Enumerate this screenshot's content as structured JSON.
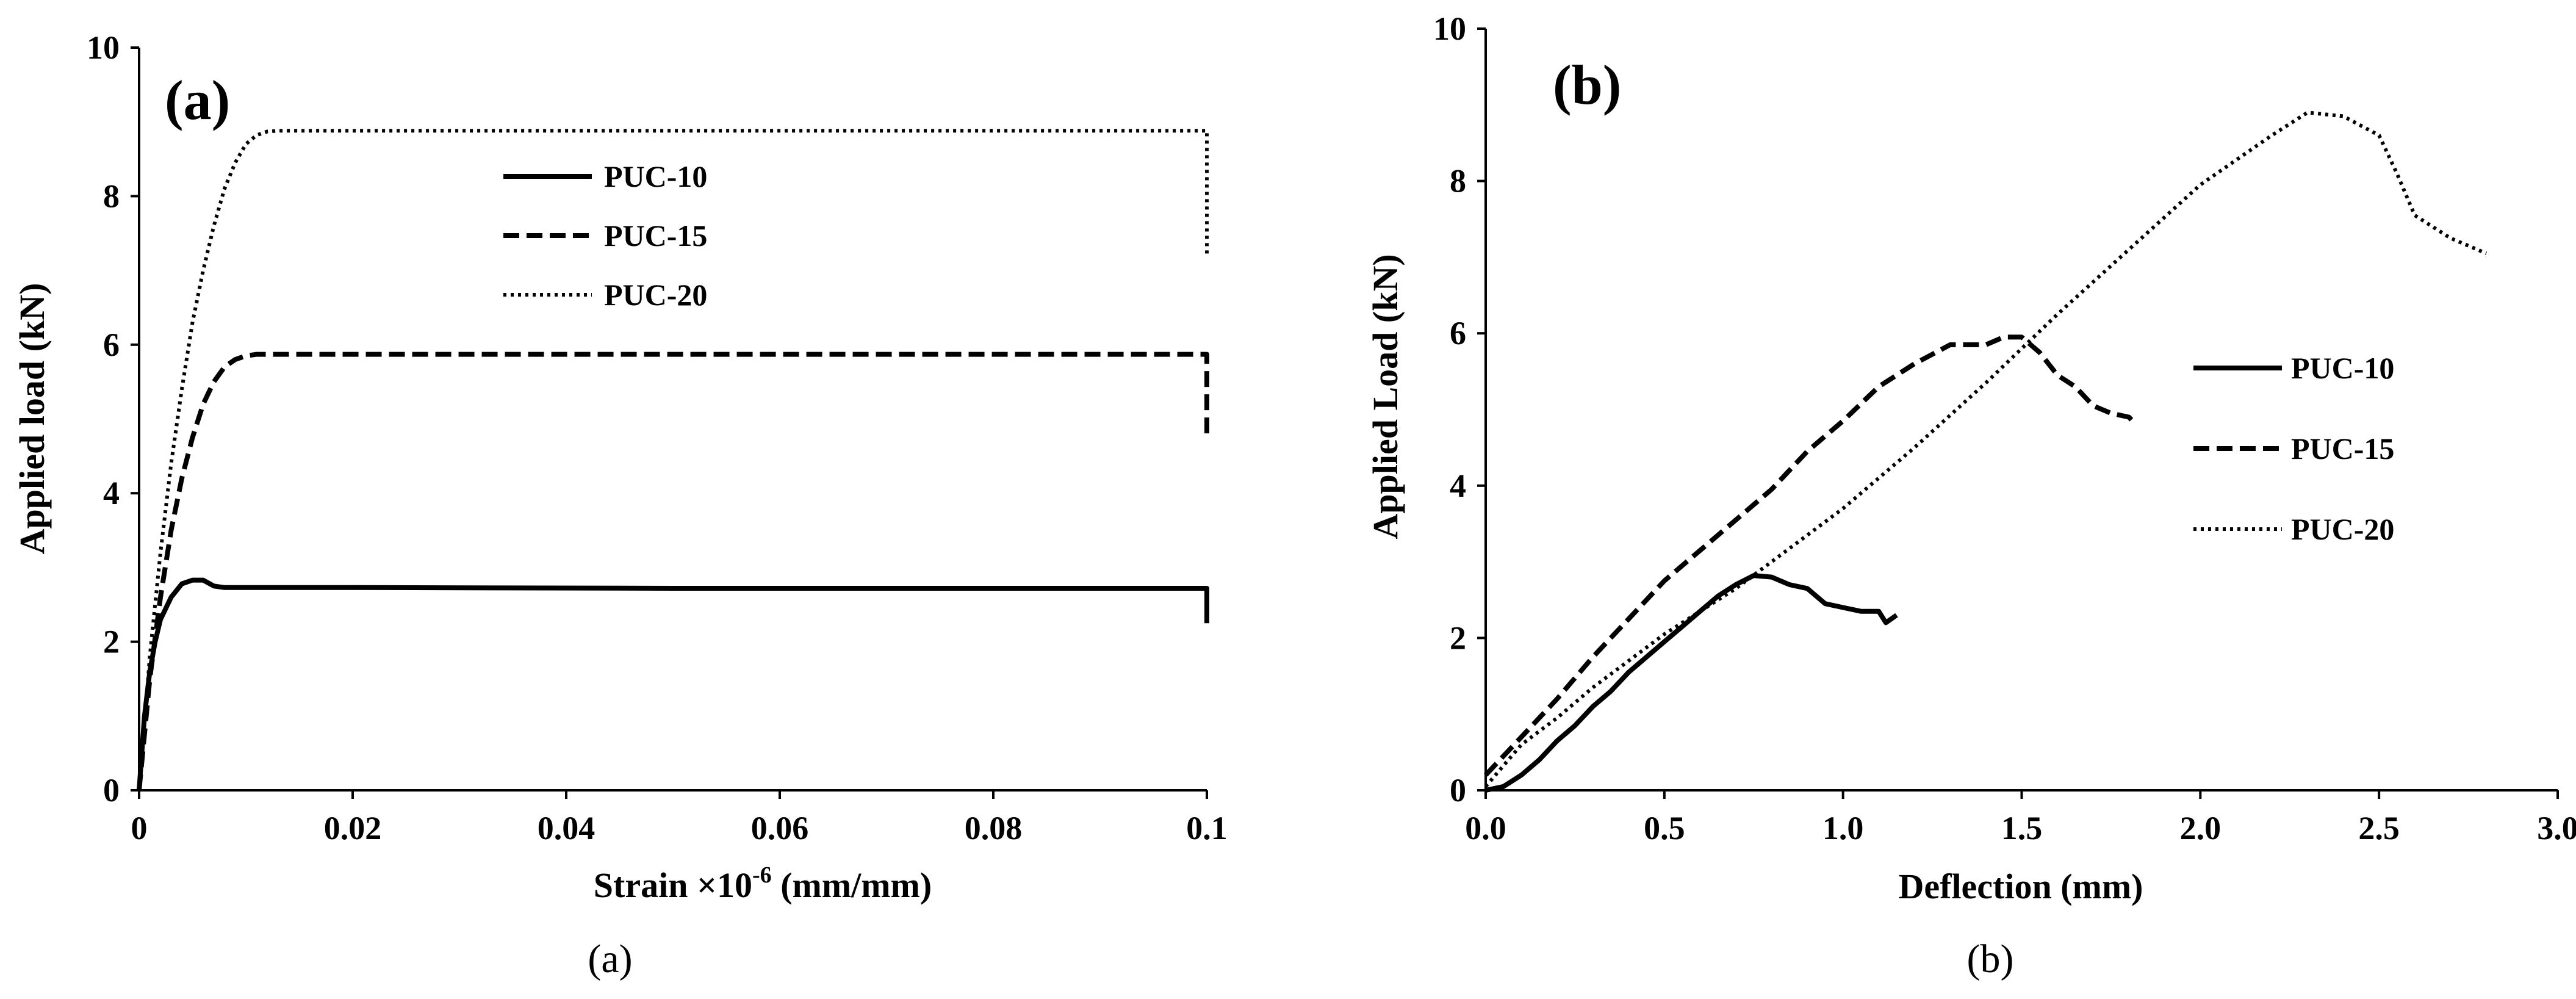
{
  "chart_data": [
    {
      "type": "line",
      "panel_label": "(a)",
      "caption": "(a)",
      "xlabel_main": "Strain ×10",
      "xlabel_exp": "-6",
      "xlabel_unit": " (mm/mm)",
      "ylabel": "Applied load (kN)",
      "xlim": [
        0,
        0.1
      ],
      "ylim": [
        0,
        10
      ],
      "xticks": [
        0,
        0.02,
        0.04,
        0.06,
        0.08,
        0.1
      ],
      "xtick_labels": [
        "0",
        "0.02",
        "0.04",
        "0.06",
        "0.08",
        "0.1"
      ],
      "yticks": [
        0,
        2,
        4,
        6,
        8,
        10
      ],
      "ytick_labels": [
        "0",
        "2",
        "4",
        "6",
        "8",
        "10"
      ],
      "legend_position": "top-center",
      "series": [
        {
          "name": "PUC-10",
          "style": "solid",
          "x": [
            0,
            0.0005,
            0.001,
            0.0015,
            0.002,
            0.003,
            0.004,
            0.005,
            0.006,
            0.007,
            0.008,
            0.02,
            0.05,
            0.08,
            0.1,
            0.1
          ],
          "y": [
            0,
            1.0,
            1.6,
            2.0,
            2.3,
            2.6,
            2.78,
            2.83,
            2.83,
            2.75,
            2.73,
            2.73,
            2.72,
            2.72,
            2.72,
            2.25
          ]
        },
        {
          "name": "PUC-15",
          "style": "dashed",
          "x": [
            0,
            0.001,
            0.002,
            0.003,
            0.004,
            0.005,
            0.006,
            0.007,
            0.008,
            0.009,
            0.01,
            0.011,
            0.03,
            0.07,
            0.1,
            0.1
          ],
          "y": [
            0,
            1.5,
            2.6,
            3.5,
            4.2,
            4.75,
            5.2,
            5.5,
            5.7,
            5.8,
            5.85,
            5.87,
            5.87,
            5.87,
            5.87,
            4.8
          ]
        },
        {
          "name": "PUC-20",
          "style": "dotted",
          "x": [
            0,
            0.001,
            0.002,
            0.003,
            0.004,
            0.005,
            0.006,
            0.007,
            0.008,
            0.009,
            0.01,
            0.011,
            0.012,
            0.013,
            0.05,
            0.1,
            0.1
          ],
          "y": [
            0,
            1.8,
            3.2,
            4.4,
            5.4,
            6.3,
            7.0,
            7.6,
            8.1,
            8.45,
            8.7,
            8.82,
            8.87,
            8.88,
            8.88,
            8.88,
            7.2
          ]
        }
      ]
    },
    {
      "type": "line",
      "panel_label": "(b)",
      "caption": "(b)",
      "xlabel": "Deflection (mm)",
      "ylabel": "Applied Load (kN)",
      "xlim": [
        0,
        3.0
      ],
      "ylim": [
        0,
        10
      ],
      "xticks": [
        0,
        0.5,
        1.0,
        1.5,
        2.0,
        2.5,
        3.0
      ],
      "xtick_labels": [
        "0.0",
        "0.5",
        "1.0",
        "1.5",
        "2.0",
        "2.5",
        "3.0"
      ],
      "yticks": [
        0,
        2,
        4,
        6,
        8,
        10
      ],
      "ytick_labels": [
        "0",
        "2",
        "4",
        "6",
        "8",
        "10"
      ],
      "legend_position": "right",
      "series": [
        {
          "name": "PUC-10",
          "style": "solid",
          "x": [
            0,
            0.05,
            0.1,
            0.15,
            0.2,
            0.25,
            0.3,
            0.35,
            0.4,
            0.45,
            0.5,
            0.55,
            0.6,
            0.65,
            0.7,
            0.75,
            0.8,
            0.85,
            0.9,
            0.95,
            1.0,
            1.05,
            1.1,
            1.12,
            1.15
          ],
          "y": [
            0,
            0.05,
            0.2,
            0.4,
            0.65,
            0.85,
            1.1,
            1.3,
            1.55,
            1.75,
            1.95,
            2.15,
            2.35,
            2.55,
            2.7,
            2.82,
            2.8,
            2.7,
            2.65,
            2.45,
            2.4,
            2.35,
            2.35,
            2.2,
            2.3
          ]
        },
        {
          "name": "PUC-15",
          "style": "dashed",
          "x": [
            0,
            0.05,
            0.1,
            0.2,
            0.3,
            0.4,
            0.5,
            0.6,
            0.7,
            0.8,
            0.9,
            1.0,
            1.1,
            1.2,
            1.3,
            1.4,
            1.45,
            1.5,
            1.55,
            1.6,
            1.65,
            1.7,
            1.75,
            1.8,
            1.82
          ],
          "y": [
            0.2,
            0.45,
            0.7,
            1.2,
            1.75,
            2.25,
            2.75,
            3.15,
            3.55,
            3.95,
            4.45,
            4.85,
            5.3,
            5.6,
            5.85,
            5.85,
            5.95,
            5.95,
            5.75,
            5.45,
            5.3,
            5.05,
            4.95,
            4.9,
            4.8
          ]
        },
        {
          "name": "PUC-20",
          "style": "dotted",
          "x": [
            0,
            0.1,
            0.2,
            0.3,
            0.4,
            0.5,
            0.6,
            0.7,
            0.8,
            0.9,
            1.0,
            1.2,
            1.4,
            1.6,
            1.8,
            2.0,
            2.2,
            2.3,
            2.4,
            2.5,
            2.55,
            2.6,
            2.7,
            2.8
          ],
          "y": [
            0.05,
            0.6,
            0.95,
            1.35,
            1.7,
            2.05,
            2.35,
            2.65,
            3.0,
            3.35,
            3.7,
            4.5,
            5.35,
            6.25,
            7.1,
            7.95,
            8.6,
            8.9,
            8.85,
            8.6,
            8.1,
            7.55,
            7.25,
            7.05
          ]
        }
      ]
    }
  ]
}
